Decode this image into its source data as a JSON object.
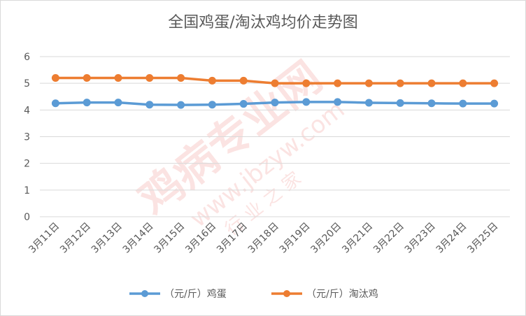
{
  "chart_data": {
    "type": "line",
    "title": "全国鸡蛋/淘汰鸡均价走势图",
    "xlabel": "",
    "ylabel": "",
    "categories": [
      "3月11日",
      "3月12日",
      "3月13日",
      "3月14日",
      "3月15日",
      "3月16日",
      "3月17日",
      "3月18日",
      "3月19日",
      "3月20日",
      "3月21日",
      "3月22日",
      "3月23日",
      "3月24日",
      "3月25日"
    ],
    "ylim": [
      0,
      6
    ],
    "yticks": [
      0,
      1,
      2,
      3,
      4,
      5,
      6
    ],
    "grid": true,
    "legend": "bottom",
    "series": [
      {
        "name": "（元/斤）鸡蛋",
        "color": "#5b9bd5",
        "values": [
          4.25,
          4.28,
          4.28,
          4.2,
          4.19,
          4.2,
          4.23,
          4.28,
          4.3,
          4.3,
          4.27,
          4.26,
          4.25,
          4.24,
          4.24
        ]
      },
      {
        "name": "（元/斤）淘汰鸡",
        "color": "#ed7d31",
        "values": [
          5.2,
          5.2,
          5.2,
          5.2,
          5.2,
          5.1,
          5.1,
          5.0,
          5.0,
          5.0,
          5.0,
          5.0,
          5.0,
          5.0,
          5.0
        ]
      }
    ]
  },
  "watermark": {
    "line1": "鸡病专业网",
    "line2": "www.jbzyw.com",
    "line3": "行 业 之 家"
  }
}
